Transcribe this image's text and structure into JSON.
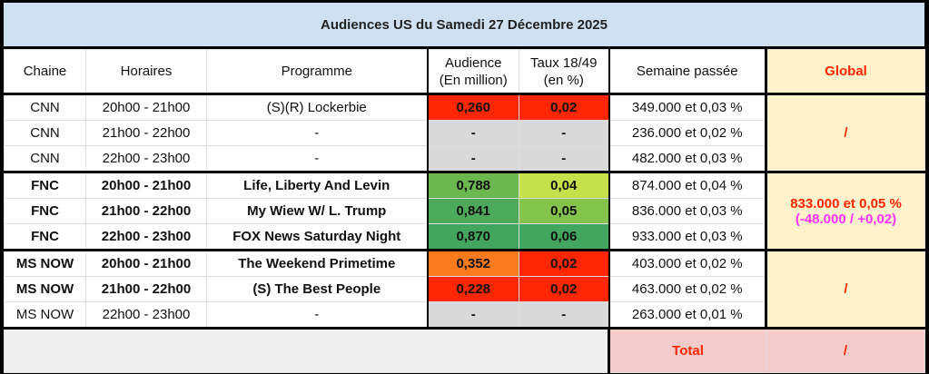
{
  "title": "Audiences US du Samedi 27 Décembre 2025",
  "headers": {
    "chaine": "Chaine",
    "horaires": "Horaires",
    "programme": "Programme",
    "audience1": "Audience",
    "audience2": "(En million)",
    "taux1": "Taux 18/49",
    "taux2": "(en %)",
    "semaine": "Semaine passée",
    "global": "Global"
  },
  "rows": [
    {
      "chaine": "CNN",
      "horaires": "20h00 - 21h00",
      "programme": "(S)(R) Lockerbie",
      "audience": "0,260",
      "taux": "0,02",
      "semaine": "349.000 et 0,03 %",
      "aud_color": "#ff2600",
      "taux_color": "#ff2600",
      "bold": false
    },
    {
      "chaine": "CNN",
      "horaires": "21h00 - 22h00",
      "programme": "-",
      "audience": "-",
      "taux": "-",
      "semaine": "236.000 et 0,02 %",
      "aud_color": "#d9d9d9",
      "taux_color": "#d9d9d9",
      "bold": false
    },
    {
      "chaine": "CNN",
      "horaires": "22h00 - 23h00",
      "programme": "-",
      "audience": "-",
      "taux": "-",
      "semaine": "482.000 et 0,03 %",
      "aud_color": "#d9d9d9",
      "taux_color": "#d9d9d9",
      "bold": false
    },
    {
      "chaine": "FNC",
      "horaires": "20h00 - 21h00",
      "programme": "Life, Liberty And Levin",
      "audience": "0,788",
      "taux": "0,04",
      "semaine": "874.000 et 0,04 %",
      "aud_color": "#6ab84f",
      "taux_color": "#c5e04a",
      "bold": true
    },
    {
      "chaine": "FNC",
      "horaires": "21h00 - 22h00",
      "programme": "My Wiew W/ L. Trump",
      "audience": "0,841",
      "taux": "0,05",
      "semaine": "836.000 et 0,03 %",
      "aud_color": "#4caa5a",
      "taux_color": "#84c34c",
      "bold": true
    },
    {
      "chaine": "FNC",
      "horaires": "22h00 - 23h00",
      "programme": "FOX News Saturday Night",
      "audience": "0,870",
      "taux": "0,06",
      "semaine": "933.000 et 0,03 %",
      "aud_color": "#42a65e",
      "taux_color": "#42a65e",
      "bold": true
    },
    {
      "chaine": "MS NOW",
      "horaires": "20h00 - 21h00",
      "programme": "The Weekend Primetime",
      "audience": "0,352",
      "taux": "0,02",
      "semaine": "403.000 et 0,02 %",
      "aud_color": "#fb7a1b",
      "taux_color": "#ff2600",
      "bold": true
    },
    {
      "chaine": "MS NOW",
      "horaires": "21h00 - 22h00",
      "programme": "(S) The Best People",
      "audience": "0,228",
      "taux": "0,02",
      "semaine": "463.000 et 0,02 %",
      "aud_color": "#ff2600",
      "taux_color": "#ff2600",
      "bold": true
    },
    {
      "chaine": "MS NOW",
      "horaires": "22h00 - 23h00",
      "programme": "-",
      "audience": "-",
      "taux": "-",
      "semaine": "263.000 et 0,01 %",
      "aud_color": "#d9d9d9",
      "taux_color": "#d9d9d9",
      "bold": false
    }
  ],
  "global": {
    "cnn": "/",
    "fnc_line1": "833.000 et 0,05 %",
    "fnc_line2": "(-48.000 / +0,02)",
    "msnow": "/"
  },
  "total": {
    "label": "Total",
    "value": "/"
  }
}
